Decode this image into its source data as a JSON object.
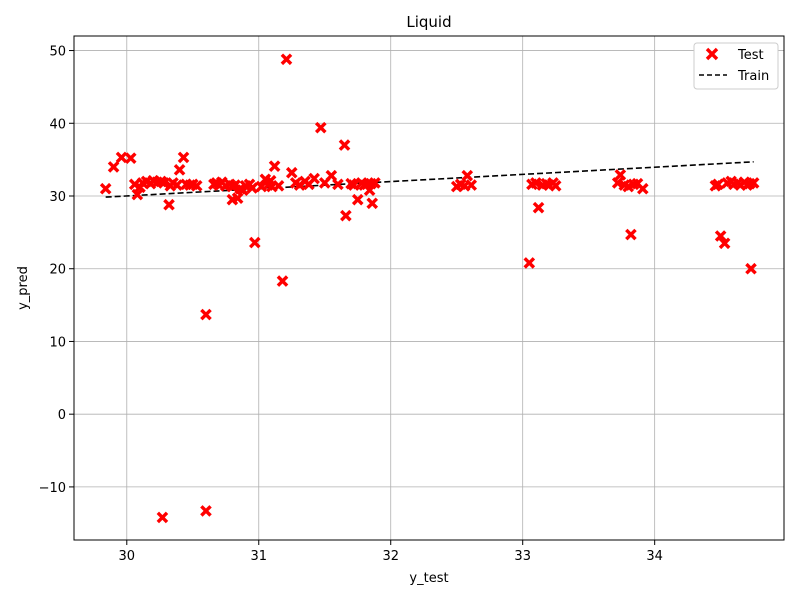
{
  "chart_data": {
    "type": "scatter",
    "title": "Liquid",
    "xlabel": "y_test",
    "ylabel": "y_pred",
    "xlim": [
      29.6,
      34.98
    ],
    "ylim": [
      -17.3,
      52.0
    ],
    "xticks": [
      30,
      31,
      32,
      33,
      34
    ],
    "yticks": [
      -10,
      0,
      10,
      20,
      30,
      40,
      50
    ],
    "xtick_labels": [
      "30",
      "31",
      "32",
      "33",
      "34"
    ],
    "ytick_labels": [
      "−10",
      "0",
      "10",
      "20",
      "30",
      "40",
      "50"
    ],
    "grid": true,
    "legend_position": "top-right",
    "colors": {
      "test": "#ff0000",
      "train": "#000000"
    },
    "series": [
      {
        "name": "Test",
        "marker": "x",
        "points": [
          [
            29.84,
            31.0
          ],
          [
            29.9,
            34.0
          ],
          [
            29.96,
            35.3
          ],
          [
            30.03,
            35.2
          ],
          [
            30.06,
            31.6
          ],
          [
            30.08,
            30.2
          ],
          [
            30.1,
            31.2
          ],
          [
            30.12,
            31.8
          ],
          [
            30.15,
            32.0
          ],
          [
            30.18,
            31.7
          ],
          [
            30.2,
            32.1
          ],
          [
            30.23,
            31.9
          ],
          [
            30.26,
            32.0
          ],
          [
            30.28,
            31.8
          ],
          [
            30.27,
            -14.2
          ],
          [
            30.32,
            28.8
          ],
          [
            30.33,
            31.4
          ],
          [
            30.35,
            31.8
          ],
          [
            30.38,
            31.5
          ],
          [
            30.4,
            33.6
          ],
          [
            30.43,
            35.3
          ],
          [
            30.45,
            31.6
          ],
          [
            30.48,
            31.5
          ],
          [
            30.5,
            31.6
          ],
          [
            30.53,
            31.4
          ],
          [
            30.6,
            13.7
          ],
          [
            30.6,
            -13.3
          ],
          [
            30.66,
            31.6
          ],
          [
            30.68,
            31.8
          ],
          [
            30.7,
            31.5
          ],
          [
            30.72,
            31.9
          ],
          [
            30.75,
            31.4
          ],
          [
            30.78,
            31.6
          ],
          [
            30.8,
            31.3
          ],
          [
            30.8,
            29.5
          ],
          [
            30.82,
            31.5
          ],
          [
            30.84,
            29.7
          ],
          [
            30.86,
            31.0
          ],
          [
            30.88,
            30.8
          ],
          [
            30.9,
            31.4
          ],
          [
            30.93,
            31.6
          ],
          [
            30.95,
            31.1
          ],
          [
            30.97,
            23.6
          ],
          [
            31.02,
            31.3
          ],
          [
            31.05,
            32.3
          ],
          [
            31.07,
            31.5
          ],
          [
            31.09,
            32.1
          ],
          [
            31.1,
            31.3
          ],
          [
            31.12,
            34.1
          ],
          [
            31.15,
            31.4
          ],
          [
            31.18,
            18.3
          ],
          [
            31.21,
            48.8
          ],
          [
            31.25,
            33.2
          ],
          [
            31.28,
            31.8
          ],
          [
            31.31,
            31.5
          ],
          [
            31.35,
            32.0
          ],
          [
            31.38,
            31.6
          ],
          [
            31.42,
            32.4
          ],
          [
            31.47,
            39.4
          ],
          [
            31.5,
            31.8
          ],
          [
            31.55,
            32.8
          ],
          [
            31.6,
            31.6
          ],
          [
            31.65,
            37.0
          ],
          [
            31.66,
            27.3
          ],
          [
            31.7,
            31.7
          ],
          [
            31.72,
            31.5
          ],
          [
            31.75,
            29.5
          ],
          [
            31.78,
            31.8
          ],
          [
            31.8,
            31.5
          ],
          [
            31.82,
            31.6
          ],
          [
            31.84,
            30.8
          ],
          [
            31.85,
            31.7
          ],
          [
            31.86,
            29.0
          ],
          [
            31.88,
            31.8
          ],
          [
            32.5,
            31.3
          ],
          [
            32.53,
            31.6
          ],
          [
            32.56,
            31.4
          ],
          [
            32.58,
            32.8
          ],
          [
            32.61,
            31.5
          ],
          [
            33.05,
            20.8
          ],
          [
            33.07,
            31.6
          ],
          [
            33.1,
            31.8
          ],
          [
            33.12,
            28.4
          ],
          [
            33.15,
            31.5
          ],
          [
            33.18,
            31.7
          ],
          [
            33.2,
            31.5
          ],
          [
            33.23,
            31.8
          ],
          [
            33.25,
            31.4
          ],
          [
            33.72,
            31.8
          ],
          [
            33.74,
            32.9
          ],
          [
            33.77,
            31.5
          ],
          [
            33.8,
            31.3
          ],
          [
            33.82,
            24.7
          ],
          [
            33.84,
            31.6
          ],
          [
            33.87,
            31.7
          ],
          [
            33.91,
            31.0
          ],
          [
            34.46,
            31.4
          ],
          [
            34.48,
            31.6
          ],
          [
            34.5,
            24.5
          ],
          [
            34.53,
            23.5
          ],
          [
            34.55,
            31.8
          ],
          [
            34.58,
            32.0
          ],
          [
            34.6,
            31.6
          ],
          [
            34.63,
            31.8
          ],
          [
            34.65,
            31.5
          ],
          [
            34.68,
            31.9
          ],
          [
            34.7,
            31.5
          ],
          [
            34.72,
            31.7
          ],
          [
            34.73,
            20.0
          ],
          [
            34.75,
            31.8
          ]
        ]
      },
      {
        "name": "Train",
        "style": "dashed-line",
        "points": [
          [
            29.84,
            29.85
          ],
          [
            34.75,
            34.7
          ]
        ]
      }
    ]
  }
}
